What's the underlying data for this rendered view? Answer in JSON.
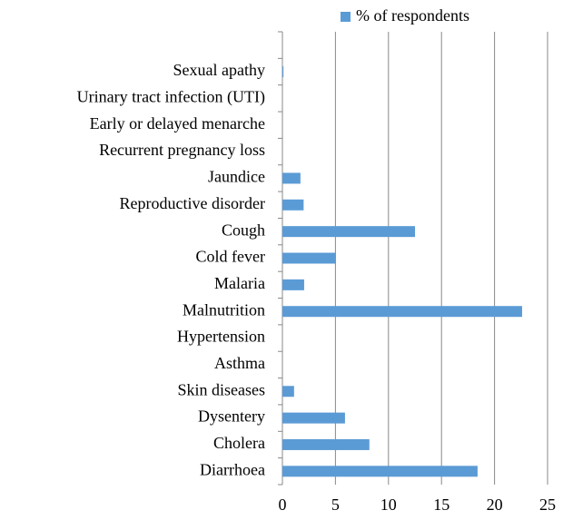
{
  "chart_data": {
    "type": "barh",
    "categories": [
      "Diarrhoea",
      "Cholera",
      "Dysentery",
      "Skin diseases",
      "Asthma",
      "Hypertension",
      "Malnutrition",
      "Malaria",
      "Cold fever",
      "Cough",
      "Reproductive disorder",
      "Jaundice",
      "Recurrent pregnancy loss",
      "Early or delayed menarche",
      "Urinary tract infection (UTI)",
      "Sexual apathy",
      null
    ],
    "series": [
      {
        "name": "% of respondents",
        "color": "#5b9bd5",
        "values": [
          18.4,
          8.2,
          5.9,
          1.1,
          0,
          0,
          22.6,
          2.05,
          5.05,
          12.5,
          2,
          1.7,
          0,
          0,
          0,
          0.1,
          null
        ]
      }
    ],
    "xlim": [
      0,
      25
    ],
    "xticks": [
      0,
      5,
      10,
      15,
      20,
      25
    ],
    "grid": true,
    "legend": "top"
  }
}
